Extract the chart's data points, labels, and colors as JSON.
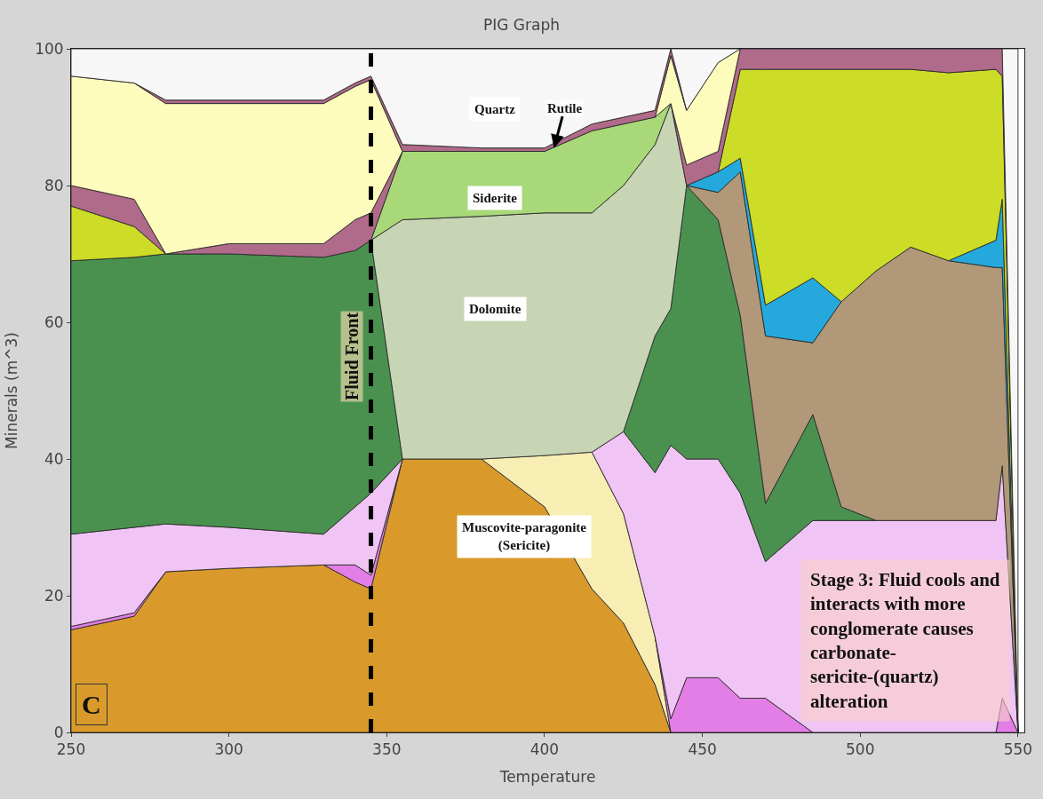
{
  "chart_data": {
    "type": "area",
    "stacked": true,
    "title": "PIG Graph",
    "xlabel": "Temperature",
    "ylabel": "Minerals (m^3)",
    "x": [
      250,
      270,
      280,
      300,
      330,
      340,
      345,
      355,
      380,
      400,
      415,
      425,
      435,
      440,
      445,
      455,
      462,
      470,
      485,
      494,
      505,
      516,
      528,
      543,
      545,
      550
    ],
    "series": [
      {
        "color": "#d99a2b",
        "values": [
          15,
          17,
          23.5,
          24,
          24.5,
          22,
          21,
          40,
          40,
          33,
          21,
          16,
          7,
          0,
          null,
          null,
          null,
          null,
          null,
          null,
          null,
          null,
          null,
          null,
          null,
          null
        ]
      },
      {
        "color": "#f8eeb4",
        "values": [
          null,
          null,
          null,
          null,
          null,
          null,
          null,
          null,
          0,
          7.5,
          20,
          16,
          7,
          0,
          null,
          null,
          null,
          null,
          null,
          null,
          null,
          null,
          null,
          null,
          null,
          null
        ]
      },
      {
        "color": "#e27ee6",
        "values": [
          0.5,
          0.5,
          0,
          null,
          0,
          2.5,
          2,
          0,
          null,
          null,
          null,
          null,
          0,
          2,
          8,
          8,
          5,
          5,
          0,
          null,
          null,
          null,
          null,
          0,
          5,
          0
        ]
      },
      {
        "color": "#f0c4f4",
        "values": [
          13.5,
          12.5,
          7,
          6,
          4.5,
          8.5,
          12,
          0,
          null,
          null,
          0,
          12,
          24,
          40,
          32,
          32,
          30,
          20,
          31,
          31,
          31,
          31,
          31,
          31,
          34,
          0
        ]
      },
      {
        "color": "#4a9150",
        "values": [
          40,
          39.5,
          39.5,
          40,
          40.5,
          37.5,
          37,
          0,
          null,
          null,
          null,
          0,
          20,
          20,
          40,
          35,
          26,
          8.5,
          15.5,
          2,
          0,
          null,
          null,
          null,
          null,
          null
        ]
      },
      {
        "color": "#b09878",
        "values": [
          null,
          null,
          null,
          null,
          null,
          null,
          null,
          null,
          null,
          null,
          null,
          null,
          null,
          null,
          0,
          4,
          21,
          24.5,
          10.5,
          30,
          36.5,
          40,
          38,
          37,
          29,
          0
        ]
      },
      {
        "color": "#25a9dc",
        "values": [
          null,
          null,
          null,
          null,
          null,
          null,
          null,
          null,
          null,
          null,
          null,
          null,
          null,
          null,
          0,
          3,
          2,
          4.5,
          9.5,
          0,
          null,
          null,
          0,
          4,
          10,
          0
        ]
      },
      {
        "color": "#ccdc27",
        "values": [
          8,
          4.5,
          0,
          null,
          null,
          null,
          null,
          null,
          null,
          null,
          null,
          null,
          null,
          null,
          null,
          0,
          13,
          34.5,
          30.5,
          34,
          29.5,
          26,
          27.5,
          25,
          18,
          0
        ]
      },
      {
        "color": "#c8d5b5",
        "values": [
          null,
          null,
          null,
          null,
          null,
          null,
          0,
          35,
          35.5,
          35.5,
          35,
          36,
          28,
          30,
          0,
          null,
          null,
          null,
          null,
          null,
          null,
          null,
          null,
          null,
          null,
          null
        ]
      },
      {
        "color": "#a8d878",
        "values": [
          null,
          null,
          null,
          null,
          null,
          null,
          0,
          10,
          9.5,
          9,
          12,
          9,
          4,
          0,
          null,
          null,
          null,
          null,
          null,
          null,
          null,
          null,
          null,
          null,
          null,
          null
        ]
      },
      {
        "color": "#b06a8a",
        "values": [
          3,
          4,
          0,
          1.5,
          2,
          4.5,
          4,
          0,
          null,
          null,
          null,
          null,
          null,
          0,
          3,
          3,
          3,
          3,
          3,
          3,
          3,
          3,
          3.5,
          3,
          4,
          0
        ]
      },
      {
        "color": "#fefcbd",
        "values": [
          16,
          17,
          22,
          20.5,
          20.5,
          19.5,
          19.5,
          0,
          null,
          null,
          null,
          null,
          0,
          7,
          8,
          13,
          0,
          null,
          null,
          null,
          null,
          null,
          null,
          null,
          null,
          null
        ]
      },
      {
        "color": "#b06a8a",
        "values": [
          null,
          0,
          0.5,
          0.5,
          0.5,
          0.5,
          0.5,
          1,
          0.5,
          0.5,
          1,
          1,
          1,
          1,
          0,
          null,
          null,
          null,
          null,
          null,
          null,
          null,
          null,
          null,
          null,
          null
        ]
      },
      {
        "color": "#f7f7f7",
        "values": [
          4,
          5,
          7.5,
          7.5,
          7.5,
          5,
          4,
          14,
          14.5,
          14.5,
          11,
          10,
          9,
          0,
          9,
          2,
          0,
          null,
          null,
          null,
          null,
          null,
          null,
          null,
          0,
          100
        ]
      }
    ],
    "xlim": [
      250,
      552
    ],
    "ylim": [
      0,
      100
    ],
    "xticks": [
      250,
      300,
      350,
      400,
      450,
      500,
      550
    ],
    "yticks": [
      0,
      20,
      40,
      60,
      80,
      100
    ],
    "ref_lines": [
      {
        "axis": "x",
        "value": 345,
        "label": "Fluid Front",
        "color": "#000000",
        "line_style": "dashed"
      }
    ],
    "annotations": [
      "Quartz",
      {
        "text": "Rutile",
        "x": 403,
        "y": 85.5
      },
      "Siderite",
      "Dolomite",
      "Muscovite-paragonite\n(Sericite)",
      "Stage 3: Fluid cools and interacts with more conglomerate causes carbonate-sericite-(quartz) alteration",
      "C"
    ]
  }
}
